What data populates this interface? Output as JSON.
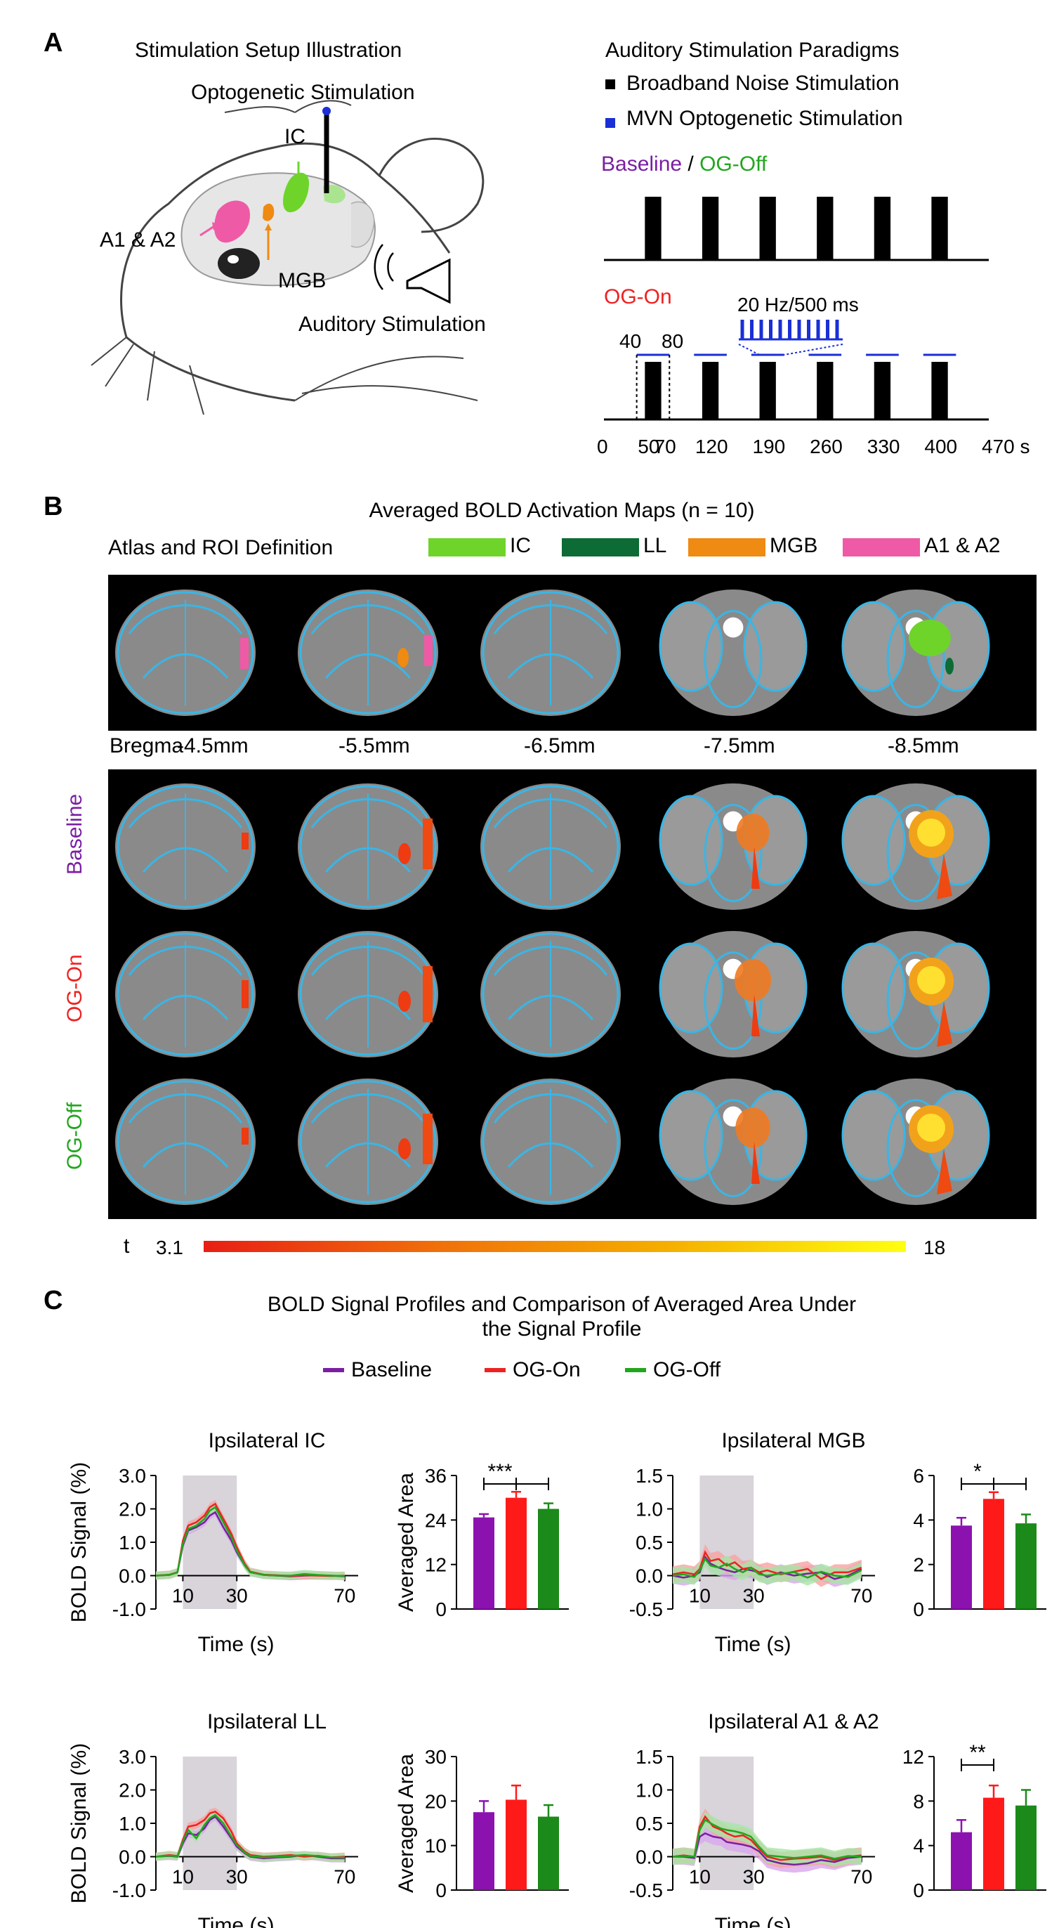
{
  "panelA": {
    "letter": "A",
    "setup_title": "Stimulation Setup Illustration",
    "optogenetic_label": "Optogenetic Stimulation",
    "ic_label": "IC",
    "a1a2_label": "A1 & A2",
    "mgb_label": "MGB",
    "auditory_label": "Auditory Stimulation",
    "paradigm_title": "Auditory Stimulation Paradigms",
    "legend_noise": "Broadband Noise Stimulation",
    "legend_mvn": "MVN Optogenetic Stimulation",
    "baseline_word": "Baseline",
    "slash": " / ",
    "ogoff_word": "OG-Off",
    "ogon_word": "OG-On",
    "pulse_label": "20 Hz/500 ms",
    "mark_40": "40",
    "mark_80": "80",
    "time_ticks": [
      "0",
      "50",
      "70",
      "120",
      "190",
      "260",
      "330",
      "400",
      "470 s"
    ],
    "colors": {
      "baseline": "#7a1fa2",
      "ogoff": "#22a61e",
      "ogon": "#ee2222",
      "mvn": "#1a2fd6"
    }
  },
  "panelB": {
    "letter": "B",
    "title": "Averaged BOLD Activation Maps (n = 10)",
    "atlas_label": "Atlas and ROI Definition",
    "roi_legend": [
      {
        "label": "IC",
        "color": "#6ed42a"
      },
      {
        "label": "LL",
        "color": "#0d6b36"
      },
      {
        "label": "MGB",
        "color": "#ef8a12"
      },
      {
        "label": "A1 & A2",
        "color": "#ef5aa6"
      }
    ],
    "bregma_label": "Bregma",
    "bregma_values": [
      "-4.5mm",
      "-5.5mm",
      "-6.5mm",
      "-7.5mm",
      "-8.5mm"
    ],
    "row_labels": [
      "Baseline",
      "OG-On",
      "OG-Off"
    ],
    "colorbar_label": "t",
    "colorbar_min": "3.1",
    "colorbar_max": "18"
  },
  "panelC": {
    "letter": "C",
    "title_line1": "BOLD Signal Profiles and Comparison of Averaged Area Under",
    "title_line2": "the Signal Profile",
    "legend": [
      {
        "label": "Baseline",
        "color": "#7a1fa2"
      },
      {
        "label": "OG-On",
        "color": "#ee2222"
      },
      {
        "label": "OG-Off",
        "color": "#22a61e"
      }
    ]
  },
  "chart_data": [
    {
      "type": "line",
      "title": "Ipsilateral IC",
      "xlabel": "Time (s)",
      "ylabel": "BOLD Signal (%)",
      "xlim": [
        0,
        75
      ],
      "ylim": [
        -1.0,
        3.0
      ],
      "xticks": [
        10,
        30,
        70
      ],
      "yticks": [
        -1.0,
        0.0,
        1.0,
        2.0,
        3.0
      ],
      "ytick_labels": [
        "-1.0",
        "0.0",
        "1.0",
        "2.0",
        "3.0"
      ],
      "xtick_labels": [
        "10",
        "30",
        "70"
      ],
      "stim_window": [
        10,
        30
      ],
      "x": [
        0,
        5,
        8,
        10,
        12,
        15,
        18,
        20,
        22,
        25,
        28,
        30,
        33,
        35,
        40,
        45,
        50,
        55,
        60,
        65,
        70
      ],
      "series": [
        {
          "name": "Baseline",
          "values": [
            0,
            0.02,
            0.1,
            0.9,
            1.35,
            1.45,
            1.6,
            1.8,
            1.9,
            1.45,
            1.05,
            0.7,
            0.3,
            0.1,
            0.02,
            0,
            -0.02,
            0,
            0.01,
            0,
            -0.02
          ]
        },
        {
          "name": "OG-On",
          "values": [
            0,
            0.03,
            0.1,
            1.05,
            1.5,
            1.6,
            1.8,
            2.05,
            2.15,
            1.7,
            1.25,
            0.85,
            0.35,
            0.12,
            0.03,
            0.01,
            -0.01,
            0.01,
            0,
            -0.01,
            0
          ]
        },
        {
          "name": "OG-Off",
          "values": [
            0,
            0.02,
            0.1,
            0.95,
            1.4,
            1.5,
            1.7,
            1.95,
            2.05,
            1.6,
            1.15,
            0.75,
            0.3,
            0.1,
            0.02,
            0,
            0,
            0.05,
            0.02,
            0,
            -0.01
          ]
        }
      ]
    },
    {
      "type": "bar",
      "ylabel": "Averaged Area",
      "categories": [
        "Baseline",
        "OG-On",
        "OG-Off"
      ],
      "values": [
        24.7,
        30.0,
        27.0
      ],
      "errors": [
        0.9,
        1.6,
        1.5
      ],
      "ylim": [
        0,
        36
      ],
      "yticks": [
        0,
        12,
        24,
        36
      ],
      "ytick_labels": [
        "0",
        "12",
        "24",
        "36"
      ],
      "significance": [
        {
          "label": "***",
          "from": 0,
          "to": 1
        },
        {
          "from": 1,
          "to": 2
        }
      ]
    },
    {
      "type": "line",
      "title": "Ipsilateral MGB",
      "xlabel": "Time (s)",
      "ylabel": "",
      "xlim": [
        0,
        75
      ],
      "ylim": [
        -0.5,
        1.5
      ],
      "xticks": [
        10,
        30,
        70
      ],
      "yticks": [
        -0.5,
        0.0,
        0.5,
        1.0,
        1.5
      ],
      "ytick_labels": [
        "-0.5",
        "0.0",
        "0.5",
        "1.0",
        "1.5"
      ],
      "xtick_labels": [
        "10",
        "30",
        "70"
      ],
      "stim_window": [
        10,
        30
      ],
      "x": [
        0,
        4,
        8,
        10,
        12,
        14,
        17,
        20,
        23,
        26,
        29,
        32,
        35,
        40,
        45,
        50,
        55,
        60,
        65,
        70
      ],
      "series": [
        {
          "name": "Baseline",
          "values": [
            0,
            -0.03,
            0,
            0.05,
            0.28,
            0.18,
            0.12,
            0.08,
            0.05,
            0.1,
            0.08,
            0.05,
            -0.02,
            0.05,
            0,
            0.03,
            0.05,
            -0.05,
            0,
            0.1
          ]
        },
        {
          "name": "OG-On",
          "values": [
            0.02,
            0.05,
            0.02,
            0.1,
            0.35,
            0.22,
            0.25,
            0.15,
            0.2,
            0.1,
            0.12,
            0.05,
            0.08,
            0.02,
            0.06,
            0.1,
            -0.05,
            0.05,
            0.05,
            0.12
          ]
        },
        {
          "name": "OG-Off",
          "values": [
            0,
            0.02,
            -0.02,
            0.08,
            0.25,
            0.15,
            0.12,
            0.18,
            0.1,
            0.05,
            0.12,
            0.02,
            0,
            0.03,
            0.05,
            -0.03,
            0.06,
            0,
            -0.02,
            0.08
          ]
        }
      ]
    },
    {
      "type": "bar",
      "ylabel": "",
      "categories": [
        "Baseline",
        "OG-On",
        "OG-Off"
      ],
      "values": [
        3.75,
        4.95,
        3.85
      ],
      "errors": [
        0.35,
        0.3,
        0.4
      ],
      "ylim": [
        0,
        6
      ],
      "yticks": [
        0,
        2,
        4,
        6
      ],
      "ytick_labels": [
        "0",
        "2",
        "4",
        "6"
      ],
      "significance": [
        {
          "label": "*",
          "from": 0,
          "to": 1
        },
        {
          "from": 1,
          "to": 2
        }
      ]
    },
    {
      "type": "line",
      "title": "Ipsilateral LL",
      "xlabel": "Time (s)",
      "ylabel": "BOLD Signal (%)",
      "xlim": [
        0,
        75
      ],
      "ylim": [
        -1.0,
        3.0
      ],
      "xticks": [
        10,
        30,
        70
      ],
      "yticks": [
        -1.0,
        0.0,
        1.0,
        2.0,
        3.0
      ],
      "ytick_labels": [
        "-1.0",
        "0.0",
        "1.0",
        "2.0",
        "3.0"
      ],
      "xtick_labels": [
        "10",
        "30",
        "70"
      ],
      "stim_window": [
        10,
        30
      ],
      "x": [
        0,
        5,
        8,
        10,
        12,
        15,
        18,
        20,
        22,
        25,
        28,
        30,
        33,
        35,
        40,
        45,
        50,
        55,
        60,
        65,
        70
      ],
      "series": [
        {
          "name": "Baseline",
          "values": [
            0,
            0.02,
            0,
            0.4,
            0.7,
            0.65,
            0.85,
            1.1,
            1.2,
            0.9,
            0.55,
            0.3,
            0.1,
            0,
            -0.05,
            -0.02,
            0,
            0.05,
            0,
            -0.05,
            -0.05
          ]
        },
        {
          "name": "OG-On",
          "values": [
            0,
            0.05,
            0.02,
            0.5,
            0.9,
            0.95,
            1.1,
            1.3,
            1.35,
            1.15,
            0.75,
            0.4,
            0.15,
            0.05,
            0,
            0.02,
            0.05,
            0,
            0.03,
            -0.02,
            0
          ]
        },
        {
          "name": "OG-Off",
          "values": [
            0,
            0.03,
            0.01,
            0.45,
            0.8,
            0.55,
            0.95,
            1.15,
            1.25,
            1.0,
            0.6,
            0.35,
            0.12,
            0.02,
            -0.02,
            0,
            0.02,
            0.05,
            0.02,
            -0.02,
            -0.03
          ]
        }
      ]
    },
    {
      "type": "bar",
      "ylabel": "Averaged Area",
      "categories": [
        "Baseline",
        "OG-On",
        "OG-Off"
      ],
      "values": [
        17.5,
        20.3,
        16.5
      ],
      "errors": [
        2.5,
        3.2,
        2.6
      ],
      "ylim": [
        0,
        30
      ],
      "yticks": [
        0,
        10,
        20,
        30
      ],
      "ytick_labels": [
        "0",
        "10",
        "20",
        "30"
      ],
      "significance": []
    },
    {
      "type": "line",
      "title": "Ipsilateral A1 & A2",
      "xlabel": "Time (s)",
      "ylabel": "",
      "xlim": [
        0,
        75
      ],
      "ylim": [
        -0.5,
        1.5
      ],
      "xticks": [
        10,
        30,
        70
      ],
      "yticks": [
        -0.5,
        0.0,
        0.5,
        1.0,
        1.5
      ],
      "ytick_labels": [
        "-0.5",
        "0.0",
        "0.5",
        "1.0",
        "1.5"
      ],
      "xtick_labels": [
        "10",
        "30",
        "70"
      ],
      "stim_window": [
        10,
        30
      ],
      "x": [
        0,
        4,
        8,
        10,
        12,
        15,
        18,
        20,
        23,
        26,
        29,
        32,
        35,
        40,
        45,
        50,
        55,
        60,
        65,
        70
      ],
      "series": [
        {
          "name": "Baseline",
          "values": [
            0,
            0,
            -0.02,
            0.3,
            0.35,
            0.3,
            0.28,
            0.22,
            0.2,
            0.18,
            0.15,
            0.08,
            -0.05,
            -0.1,
            -0.12,
            -0.1,
            -0.05,
            -0.08,
            -0.02,
            0
          ]
        },
        {
          "name": "OG-On",
          "values": [
            0,
            0.02,
            0,
            0.45,
            0.6,
            0.45,
            0.4,
            0.35,
            0.3,
            0.32,
            0.25,
            0.12,
            0,
            -0.05,
            -0.03,
            -0.02,
            0,
            -0.05,
            0,
            0.02
          ]
        },
        {
          "name": "OG-Off",
          "values": [
            0,
            0.01,
            0,
            0.4,
            0.55,
            0.48,
            0.42,
            0.4,
            0.38,
            0.35,
            0.3,
            0.15,
            0.02,
            0,
            -0.02,
            0,
            0.02,
            -0.03,
            0.01,
            0
          ]
        }
      ]
    },
    {
      "type": "bar",
      "ylabel": "",
      "categories": [
        "Baseline",
        "OG-On",
        "OG-Off"
      ],
      "values": [
        5.2,
        8.3,
        7.6
      ],
      "errors": [
        1.1,
        1.1,
        1.4
      ],
      "ylim": [
        0,
        12
      ],
      "yticks": [
        0,
        4,
        8,
        12
      ],
      "ytick_labels": [
        "0",
        "4",
        "8",
        "12"
      ],
      "significance": [
        {
          "label": "**",
          "from": 0,
          "to": 1
        }
      ]
    }
  ]
}
